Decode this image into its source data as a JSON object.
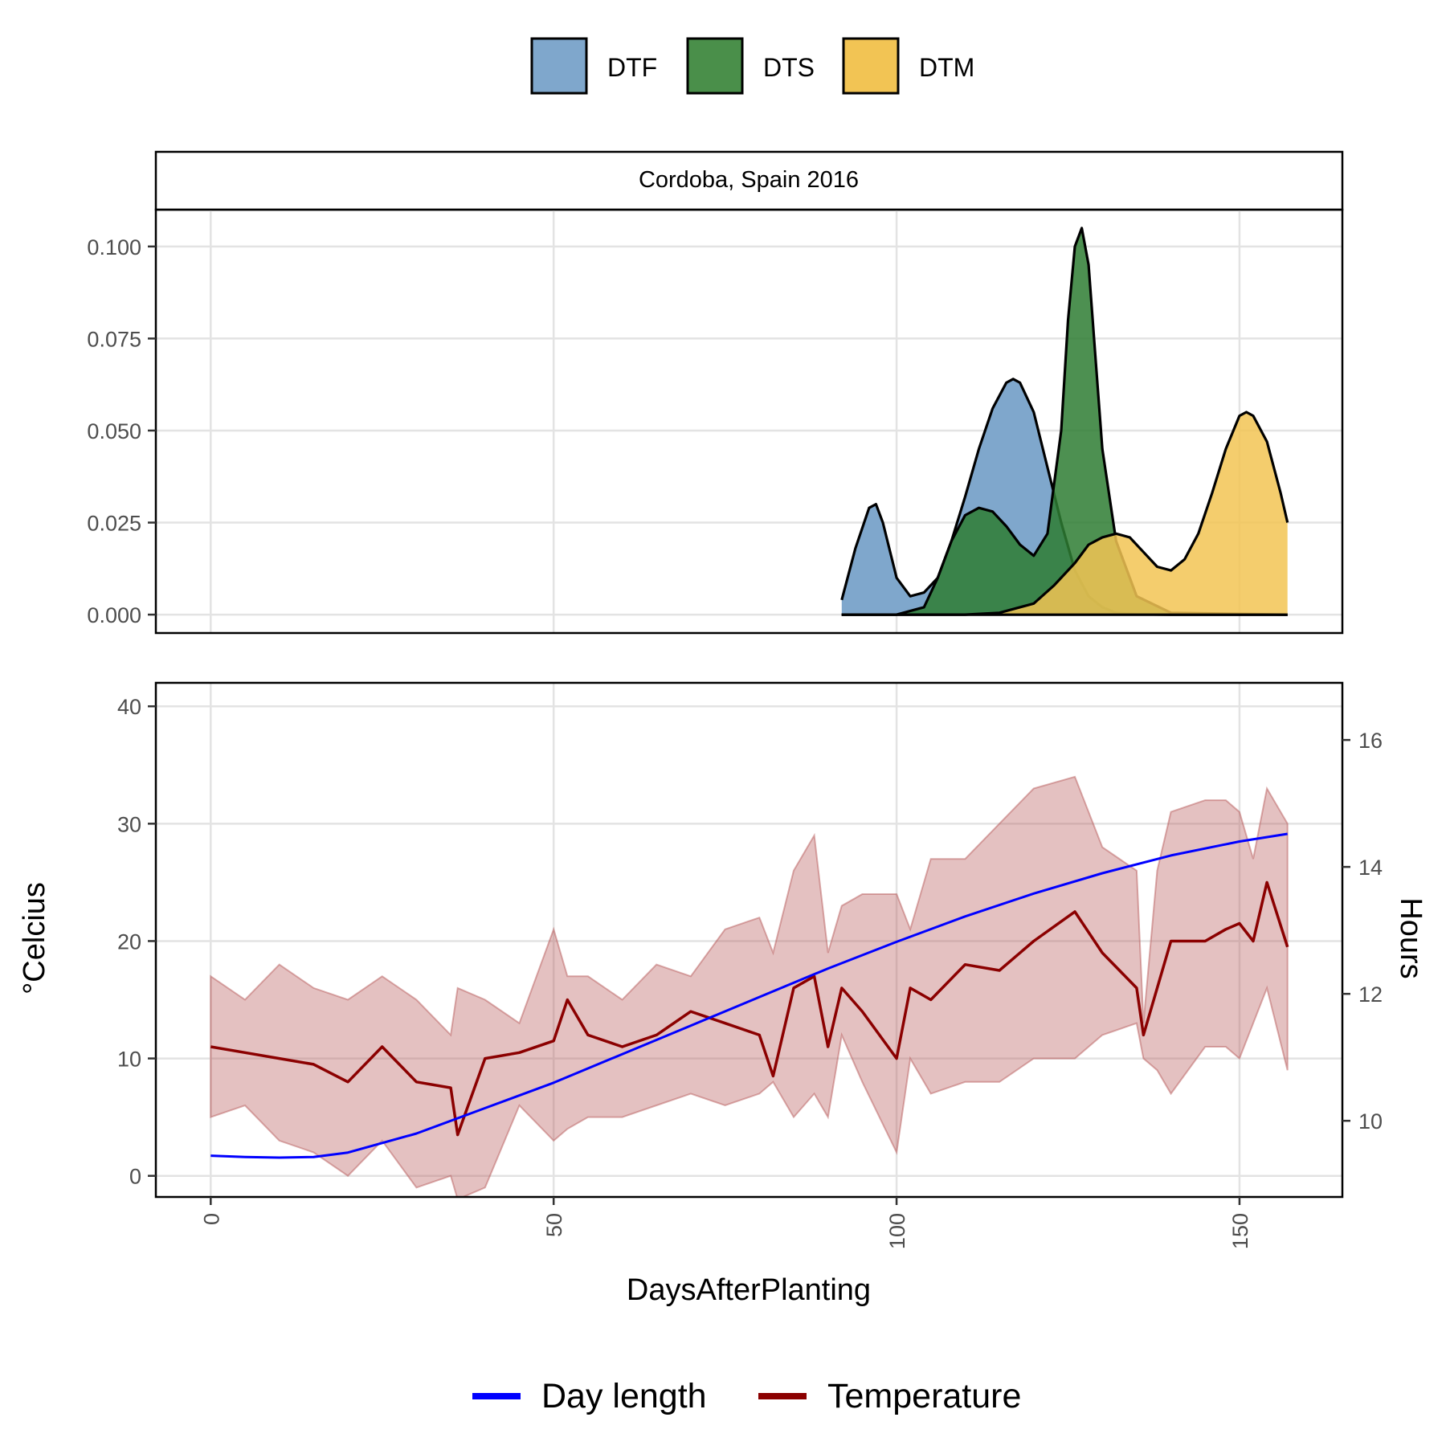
{
  "chart_data": [
    {
      "type": "area",
      "strip_title": "Cordoba, Spain 2016",
      "xlim": [
        -8,
        165
      ],
      "ylim": [
        -0.005,
        0.11
      ],
      "y_ticks": [
        "0.000",
        "0.025",
        "0.050",
        "0.075",
        "0.100"
      ],
      "y_tick_values": [
        0,
        0.025,
        0.05,
        0.075,
        0.1
      ],
      "x_grid": [
        0,
        50,
        100,
        150
      ],
      "grid": true,
      "legend": {
        "placement": "top",
        "entries": [
          {
            "label": "DTF",
            "color": "#7fa7cc"
          },
          {
            "label": "DTS",
            "color": "#4a8f4a"
          },
          {
            "label": "DTM",
            "color": "#f2c454"
          }
        ]
      },
      "series": [
        {
          "name": "DTF",
          "color": "#7fa7cc",
          "opacity": 1,
          "x": [
            92,
            94,
            96,
            97,
            98,
            100,
            102,
            104,
            106,
            108,
            110,
            112,
            114,
            116,
            117,
            118,
            120,
            122,
            124,
            126,
            128,
            130,
            132,
            135,
            140,
            157
          ],
          "y": [
            0.004,
            0.018,
            0.029,
            0.03,
            0.025,
            0.01,
            0.005,
            0.006,
            0.01,
            0.02,
            0.032,
            0.045,
            0.056,
            0.063,
            0.064,
            0.063,
            0.055,
            0.04,
            0.025,
            0.012,
            0.005,
            0.002,
            0.0005,
            0.0001,
            0.0,
            0.0
          ]
        },
        {
          "name": "DTS",
          "color": "#2e7d32",
          "opacity": 0.85,
          "x": [
            92,
            100,
            104,
            106,
            108,
            110,
            112,
            114,
            116,
            118,
            120,
            122,
            124,
            125,
            126,
            127,
            128,
            129,
            130,
            132,
            135,
            140,
            157
          ],
          "y": [
            0.0,
            0.0,
            0.002,
            0.01,
            0.02,
            0.027,
            0.029,
            0.028,
            0.024,
            0.019,
            0.016,
            0.022,
            0.05,
            0.08,
            0.1,
            0.105,
            0.095,
            0.07,
            0.045,
            0.02,
            0.005,
            0.0005,
            0.0
          ]
        },
        {
          "name": "DTM",
          "color": "#f2c454",
          "opacity": 0.85,
          "x": [
            92,
            110,
            115,
            120,
            123,
            126,
            128,
            130,
            132,
            134,
            136,
            138,
            140,
            142,
            144,
            146,
            148,
            150,
            151,
            152,
            154,
            156,
            157
          ],
          "y": [
            0.0,
            0.0,
            0.0005,
            0.003,
            0.008,
            0.014,
            0.019,
            0.021,
            0.022,
            0.021,
            0.017,
            0.013,
            0.012,
            0.015,
            0.022,
            0.033,
            0.045,
            0.054,
            0.055,
            0.054,
            0.047,
            0.033,
            0.025
          ]
        }
      ]
    },
    {
      "type": "line",
      "xlabel": "DaysAfterPlanting",
      "ylabel": "°Celcius",
      "ylabel_right": "Hours",
      "xlim": [
        -8,
        165
      ],
      "ylim": [
        -1.8,
        42
      ],
      "ylim_right": [
        8.8,
        16.9
      ],
      "x_ticks": [
        0,
        50,
        100,
        150
      ],
      "y_ticks": [
        0,
        10,
        20,
        30,
        40
      ],
      "y_ticks_right": [
        10,
        12,
        14,
        16
      ],
      "grid": true,
      "legend": {
        "placement": "bottom",
        "entries": [
          {
            "label": "Day length",
            "color": "#0000ff"
          },
          {
            "label": "Temperature",
            "color": "#8b0000"
          }
        ]
      },
      "temperature": {
        "name": "Temperature",
        "color": "#8b0000",
        "x": [
          0,
          5,
          10,
          15,
          20,
          25,
          30,
          35,
          36,
          40,
          45,
          50,
          52,
          55,
          60,
          65,
          70,
          75,
          80,
          82,
          85,
          88,
          90,
          92,
          95,
          100,
          102,
          105,
          110,
          115,
          120,
          126,
          130,
          135,
          136,
          138,
          140,
          145,
          148,
          150,
          152,
          154,
          157
        ],
        "mean": [
          11,
          10.5,
          10,
          9.5,
          8,
          11,
          8,
          7.5,
          3.5,
          10,
          10.5,
          11.5,
          15,
          12,
          11,
          12,
          14,
          13,
          12,
          8.5,
          16,
          17,
          11,
          16,
          14,
          10,
          16,
          15,
          18,
          17.5,
          20,
          22.5,
          19,
          16,
          12,
          16,
          20,
          20,
          21,
          21.5,
          20,
          25,
          19.5
        ],
        "min": [
          5,
          6,
          3,
          2,
          0,
          3,
          -1,
          0,
          -2,
          -1,
          6,
          3,
          4,
          5,
          5,
          6,
          7,
          6,
          7,
          8,
          5,
          7,
          5,
          12,
          8,
          2,
          10,
          7,
          8,
          8,
          10,
          10,
          12,
          13,
          10,
          9,
          7,
          11,
          11,
          10,
          13,
          16,
          9
        ],
        "max": [
          17,
          15,
          18,
          16,
          15,
          17,
          15,
          12,
          16,
          15,
          13,
          21,
          17,
          17,
          15,
          18,
          17,
          21,
          22,
          19,
          26,
          29,
          19,
          23,
          24,
          24,
          21,
          27,
          27,
          30,
          33,
          34,
          28,
          26,
          13,
          26,
          31,
          32,
          32,
          31,
          27,
          33,
          30
        ]
      },
      "day_length": {
        "name": "Day length",
        "color": "#0000ff",
        "x": [
          0,
          5,
          10,
          15,
          20,
          30,
          40,
          50,
          60,
          70,
          80,
          90,
          100,
          110,
          120,
          130,
          140,
          150,
          157
        ],
        "hours": [
          9.45,
          9.43,
          9.42,
          9.43,
          9.5,
          9.8,
          10.2,
          10.6,
          11.05,
          11.5,
          11.95,
          12.4,
          12.82,
          13.22,
          13.58,
          13.9,
          14.18,
          14.4,
          14.52
        ]
      }
    }
  ]
}
